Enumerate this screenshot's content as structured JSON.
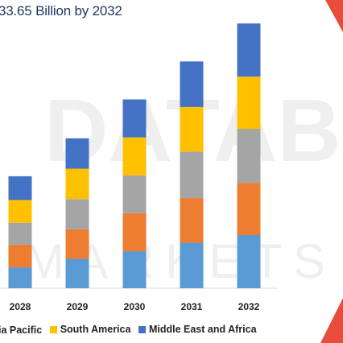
{
  "header": {
    "title_fragment": "",
    "subtitle": "33.65 Billion by 2032"
  },
  "chart_data": {
    "type": "bar",
    "stacked": true,
    "categories": [
      "2028",
      "2029",
      "2030",
      "2031",
      "2032"
    ],
    "series": [
      {
        "name": "",
        "color": "#5b9bd5",
        "values": [
          22,
          31,
          39,
          48,
          56
        ]
      },
      {
        "name": "",
        "color": "#ed7d31",
        "values": [
          24,
          31,
          40,
          47,
          55
        ]
      },
      {
        "name": "",
        "color": "#a5a5a5",
        "values": [
          23,
          32,
          40,
          49,
          57
        ]
      },
      {
        "name": "South America",
        "color": "#ffc000",
        "values": [
          24,
          32,
          40,
          47,
          55
        ]
      },
      {
        "name": "Middle East and Africa",
        "color": "#4472c4",
        "values": [
          25,
          32,
          40,
          48,
          56
        ]
      }
    ],
    "legend": [
      "ia Pacific",
      "South America",
      "Middle East and Africa"
    ],
    "legend_colors": [
      "#ffc000",
      "#ffc000",
      "#4472c4"
    ],
    "ylim": [
      0,
      280
    ],
    "grid": false,
    "legend_position": "bottom"
  }
}
